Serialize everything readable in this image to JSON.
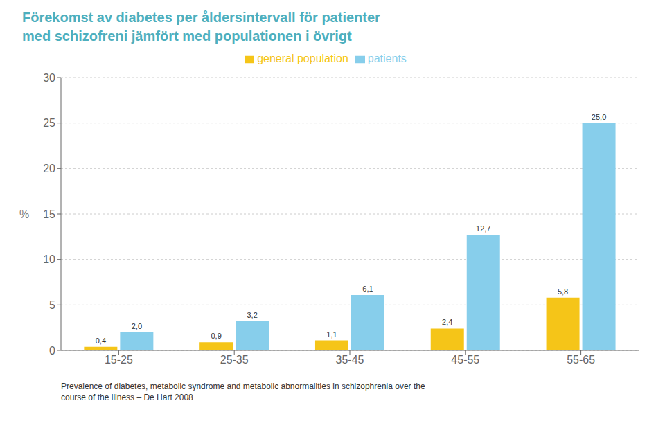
{
  "chart_data": {
    "type": "bar",
    "title": "Förekomst av diabetes per åldersintervall för patienter\nmed schizofreni jämfört med populationen i övrigt",
    "categories": [
      "15-25",
      "25-35",
      "35-45",
      "45-55",
      "55-65"
    ],
    "series": [
      {
        "name": "general population",
        "color": "#F5C518",
        "values": [
          0.4,
          0.9,
          1.1,
          2.4,
          5.8
        ],
        "value_labels": [
          "0,4",
          "0,9",
          "1,1",
          "2,4",
          "5,8"
        ]
      },
      {
        "name": "patients",
        "color": "#87CEEB",
        "values": [
          2.0,
          3.2,
          6.1,
          12.7,
          25.0
        ],
        "value_labels": [
          "2,0",
          "3,2",
          "6,1",
          "12,7",
          "25,0"
        ]
      }
    ],
    "y_label": "%",
    "ylim": [
      0,
      30
    ],
    "yticks": [
      0,
      5,
      10,
      15,
      20,
      25,
      30
    ],
    "grid": true,
    "legend": "top",
    "data_labels": true,
    "annotations": [
      "Prevalence of diabetes, metabolic syndrome and metabolic abnormalities in schizophrenia over the\ncourse of the illness – De Hart 2008"
    ]
  }
}
